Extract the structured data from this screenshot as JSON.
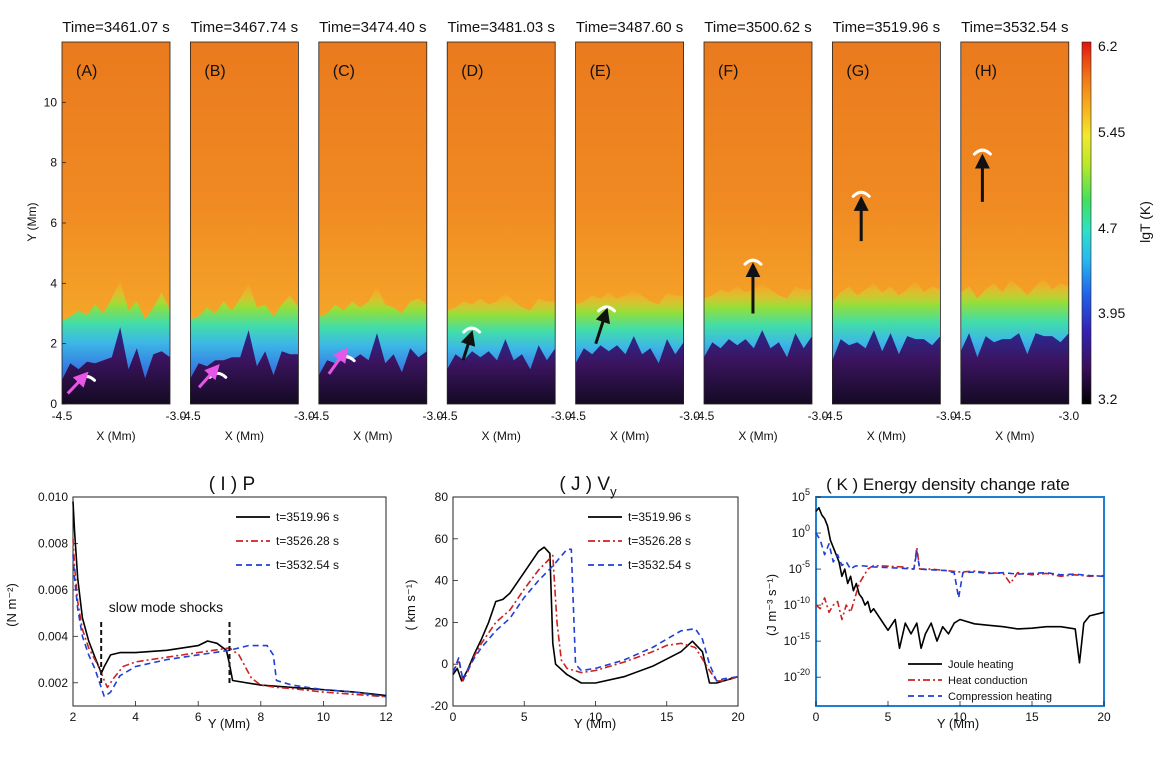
{
  "chart_data": [
    {
      "type": "heatmap",
      "panels": [
        {
          "label": "(A)",
          "title": "Time=3461.07 s",
          "arrow_color": "#e856e8",
          "arrow": {
            "from": [
              -4.42,
              0.35
            ],
            "to": [
              -4.16,
              1.0
            ]
          },
          "front_y": 0.85,
          "tr_base": [
            1.85,
            2.0,
            2.2,
            2.05,
            2.4,
            2.1,
            2.6,
            3.2,
            2.2,
            2.5,
            1.9,
            2.3,
            2.8,
            2.2
          ]
        },
        {
          "label": "(B)",
          "title": "Time=3467.74 s",
          "arrow_color": "#e856e8",
          "arrow": {
            "from": [
              -4.38,
              0.55
            ],
            "to": [
              -4.12,
              1.25
            ]
          },
          "front_y": 0.95,
          "tr_base": [
            1.9,
            2.0,
            2.3,
            2.1,
            2.5,
            2.2,
            2.6,
            3.1,
            2.3,
            2.4,
            2.0,
            2.4,
            2.7,
            2.3
          ]
        },
        {
          "label": "(C)",
          "title": "Time=3474.40 s",
          "arrow_color": "#e856e8",
          "arrow": {
            "from": [
              -4.36,
              1.0
            ],
            "to": [
              -4.12,
              1.8
            ]
          },
          "front_y": 1.5,
          "tr_base": [
            2.0,
            2.1,
            2.4,
            2.2,
            2.5,
            2.3,
            2.5,
            3.0,
            2.4,
            2.3,
            2.1,
            2.5,
            2.6,
            2.4
          ]
        },
        {
          "label": "(D)",
          "title": "Time=3481.03 s",
          "arrow_color": "#111111",
          "arrow": {
            "from": [
              -4.28,
              1.45
            ],
            "to": [
              -4.16,
              2.35
            ]
          },
          "front_y": 2.45,
          "tr_base": [
            2.2,
            2.3,
            2.5,
            2.4,
            2.6,
            2.4,
            2.5,
            2.8,
            2.5,
            2.3,
            2.2,
            2.6,
            2.5,
            2.5
          ]
        },
        {
          "label": "(E)",
          "title": "Time=3487.60 s",
          "arrow_color": "#111111",
          "arrow": {
            "from": [
              -4.22,
              2.0
            ],
            "to": [
              -4.07,
              3.1
            ]
          },
          "front_y": 3.15,
          "tr_base": [
            2.4,
            2.5,
            2.7,
            2.6,
            2.8,
            2.6,
            2.7,
            2.9,
            2.7,
            2.5,
            2.4,
            2.8,
            2.7,
            2.7
          ]
        },
        {
          "label": "(F)",
          "title": "Time=3500.62 s",
          "arrow_color": "#111111",
          "arrow": {
            "from": [
              -3.82,
              3.0
            ],
            "to": [
              -3.82,
              4.6
            ]
          },
          "front_y": 4.7,
          "tr_base": [
            2.6,
            2.7,
            2.9,
            2.8,
            3.0,
            2.8,
            2.9,
            3.1,
            2.9,
            2.7,
            2.6,
            3.0,
            2.9,
            2.9
          ]
        },
        {
          "label": "(G)",
          "title": "Time=3519.96 s",
          "arrow_color": "#111111",
          "arrow": {
            "from": [
              -4.1,
              5.4
            ],
            "to": [
              -4.1,
              6.8
            ]
          },
          "front_y": 6.95,
          "tr_base": [
            2.5,
            2.8,
            3.0,
            2.7,
            2.9,
            3.1,
            2.8,
            3.0,
            2.7,
            2.9,
            3.2,
            2.8,
            3.0,
            2.9
          ]
        },
        {
          "label": "(H)",
          "title": "Time=3532.54 s",
          "arrow_color": "#111111",
          "arrow": {
            "from": [
              -4.2,
              6.7
            ],
            "to": [
              -4.2,
              8.2
            ]
          },
          "front_y": 8.35,
          "tr_base": [
            2.8,
            3.0,
            2.6,
            2.9,
            3.1,
            2.8,
            3.2,
            3.0,
            2.7,
            3.0,
            3.3,
            2.9,
            3.1,
            3.0
          ]
        }
      ],
      "xlabel": "X (Mm)",
      "ylabel": "Y (Mm)",
      "x_range": [
        -4.5,
        -3.0
      ],
      "y_range": [
        0,
        12
      ],
      "x_tick_labels": [
        "-4.5",
        "-3.0"
      ],
      "y_ticks": [
        0,
        2,
        4,
        6,
        8,
        10
      ],
      "colorbar": {
        "label": "lgT (K)",
        "ticks": [
          "6.2",
          "5.45",
          "4.7",
          "3.95",
          "3.2"
        ],
        "range": [
          3.2,
          6.2
        ]
      }
    },
    {
      "type": "line",
      "title": "( I ) P",
      "ylabel": "(N m⁻²)",
      "xlabel": "Y (Mm)",
      "xlim": [
        2,
        12
      ],
      "ylim": [
        0.001,
        0.01
      ],
      "x_ticks": [
        2,
        4,
        6,
        8,
        10,
        12
      ],
      "y_ticks": [
        "0.010",
        "0.008",
        "0.006",
        "0.004",
        "0.002"
      ],
      "y_tick_values": [
        0.01,
        0.008,
        0.006,
        0.004,
        0.002
      ],
      "annotation": "slow mode shocks",
      "shock_x": [
        2.9,
        7.0
      ],
      "series": [
        {
          "name": "t=3519.96 s",
          "color": "#000000",
          "dash": "",
          "x": [
            2.0,
            2.05,
            2.15,
            2.3,
            2.5,
            2.7,
            2.85,
            2.9,
            3.0,
            3.2,
            3.5,
            4,
            5,
            6,
            6.3,
            6.6,
            6.9,
            7.0,
            7.1,
            8,
            9,
            10,
            11,
            12
          ],
          "y": [
            0.0098,
            0.0085,
            0.0065,
            0.0048,
            0.0038,
            0.0031,
            0.0026,
            0.0024,
            0.0027,
            0.0032,
            0.0033,
            0.0033,
            0.0034,
            0.0036,
            0.0038,
            0.0037,
            0.0034,
            0.0028,
            0.0021,
            0.0019,
            0.0018,
            0.0017,
            0.0016,
            0.00145
          ]
        },
        {
          "name": "t=3526.28 s",
          "color": "#cc2222",
          "dash": "7,3,2,3",
          "x": [
            2.0,
            2.05,
            2.15,
            2.3,
            2.5,
            2.7,
            2.85,
            3.0,
            3.1,
            3.3,
            3.6,
            4,
            5,
            6,
            7.0,
            7.3,
            7.7,
            8.0,
            8.5,
            9,
            10,
            11,
            12
          ],
          "y": [
            0.0082,
            0.007,
            0.0055,
            0.0043,
            0.0035,
            0.003,
            0.0026,
            0.0021,
            0.0018,
            0.0022,
            0.0027,
            0.0029,
            0.0031,
            0.0033,
            0.0035,
            0.0032,
            0.0022,
            0.0019,
            0.0018,
            0.00175,
            0.0016,
            0.0015,
            0.0014
          ]
        },
        {
          "name": "t=3532.54 s",
          "color": "#1f3fd6",
          "dash": "6,4",
          "x": [
            2.0,
            2.05,
            2.15,
            2.3,
            2.5,
            2.7,
            2.9,
            3.0,
            3.2,
            3.5,
            4,
            5,
            6,
            7,
            7.6,
            8.2,
            8.4,
            8.5,
            9,
            10,
            11,
            12
          ],
          "y": [
            0.0075,
            0.0065,
            0.0052,
            0.004,
            0.0032,
            0.0026,
            0.0018,
            0.0014,
            0.0016,
            0.0023,
            0.0027,
            0.003,
            0.0032,
            0.0034,
            0.0036,
            0.0036,
            0.0032,
            0.0021,
            0.0019,
            0.0017,
            0.0016,
            0.0014
          ]
        }
      ]
    },
    {
      "type": "line",
      "title": "( J ) V",
      "title_sub": "y",
      "ylabel": "( km s⁻¹)",
      "xlabel": "Y (Mm)",
      "xlim": [
        0,
        20
      ],
      "ylim": [
        -20,
        80
      ],
      "x_ticks": [
        0,
        5,
        10,
        15,
        20
      ],
      "y_ticks": [
        -20,
        0,
        20,
        40,
        60,
        80
      ],
      "series": [
        {
          "name": "t=3519.96 s",
          "color": "#000000",
          "dash": "",
          "x": [
            0,
            0.3,
            0.6,
            1,
            1.5,
            2,
            2.5,
            3,
            3.5,
            4,
            5,
            6,
            6.4,
            6.8,
            7.0,
            7.2,
            8,
            9,
            10,
            12,
            14,
            16,
            16.8,
            17.5,
            18,
            18.5,
            19,
            20
          ],
          "y": [
            -5,
            -2,
            -8,
            -3,
            5,
            12,
            20,
            30,
            31,
            34,
            44,
            54,
            56,
            53,
            10,
            0,
            -5,
            -9,
            -9,
            -6,
            -1,
            6,
            11,
            6,
            -9,
            -9,
            -8,
            -6
          ]
        },
        {
          "name": "t=3526.28 s",
          "color": "#cc2222",
          "dash": "7,3,2,3",
          "x": [
            0,
            0.4,
            0.7,
            1,
            1.5,
            2,
            3,
            4,
            5,
            6,
            7,
            7.3,
            7.6,
            8,
            9,
            10,
            12,
            14,
            15,
            16,
            17,
            18,
            18.5,
            19,
            20
          ],
          "y": [
            -4,
            2,
            -8,
            -4,
            4,
            10,
            20,
            26,
            36,
            45,
            52,
            20,
            2,
            -2,
            -4,
            -3,
            1,
            6,
            9,
            10,
            8,
            -3,
            -8,
            -8,
            -6
          ]
        },
        {
          "name": "t=3532.54 s",
          "color": "#1f3fd6",
          "dash": "6,4",
          "x": [
            0,
            0.4,
            0.7,
            1,
            1.5,
            2,
            3,
            4,
            5,
            6,
            7,
            8,
            8.3,
            8.6,
            9,
            10,
            12,
            14,
            15,
            16,
            17,
            17.5,
            18,
            18.5,
            19,
            20
          ],
          "y": [
            -4,
            3,
            -8,
            -3,
            3,
            8,
            16,
            22,
            32,
            40,
            47,
            55,
            55,
            0,
            -3,
            -2,
            2,
            8,
            12,
            16,
            17,
            12,
            0,
            -8,
            -7,
            -6
          ]
        }
      ]
    },
    {
      "type": "line",
      "title": "( K )  Energy density change rate",
      "ylabel": "(J m⁻³ s⁻¹)",
      "xlabel": "Y (Mm)",
      "xlim": [
        0,
        20
      ],
      "ylim_log10": [
        -24,
        5
      ],
      "x_ticks": [
        0,
        5,
        10,
        15,
        20
      ],
      "y_tick_exponents": [
        5,
        0,
        -5,
        -10,
        -15,
        -20
      ],
      "frame_color": "#1f7fd0",
      "series": [
        {
          "name": "Joule heating",
          "color": "#000000",
          "dash": "",
          "x": [
            0,
            0.2,
            0.4,
            0.6,
            0.8,
            1.0,
            1.2,
            1.4,
            1.6,
            1.8,
            2.0,
            2.2,
            2.4,
            2.6,
            2.8,
            3.0,
            3.2,
            3.4,
            3.6,
            3.8,
            4.0,
            4.5,
            5.0,
            5.5,
            5.8,
            6.2,
            6.6,
            7.0,
            7.3,
            7.6,
            8.0,
            8.4,
            8.8,
            9.2,
            9.6,
            10.0,
            11,
            12,
            13,
            14,
            15,
            16,
            17,
            18,
            18.3,
            18.6,
            19,
            20
          ],
          "y": [
            3,
            3.5,
            2.5,
            2,
            1,
            -1,
            -2,
            -3,
            -4,
            -6,
            -5,
            -7,
            -6,
            -8,
            -7,
            -8.5,
            -9,
            -10,
            -9.5,
            -11,
            -10.5,
            -12,
            -13.5,
            -12,
            -16,
            -12.5,
            -14,
            -12.5,
            -16,
            -14,
            -12.5,
            -15,
            -13,
            -14,
            -12.5,
            -12,
            -12.6,
            -12.8,
            -13,
            -13.3,
            -13.2,
            -13,
            -13,
            -13.3,
            -18,
            -12.5,
            -11.5,
            -11
          ]
        },
        {
          "name": "Heat conduction",
          "color": "#cc2222",
          "dash": "7,3,2,3",
          "x": [
            0,
            0.3,
            0.6,
            0.9,
            1.2,
            1.5,
            1.8,
            2.1,
            2.4,
            2.7,
            3.0,
            3.3,
            3.6,
            4.0,
            5,
            6,
            6.8,
            7.0,
            7.2,
            8,
            9,
            10,
            11,
            12,
            13,
            13.5,
            14,
            15,
            16,
            17,
            18,
            19,
            20
          ],
          "y": [
            -10,
            -10.5,
            -9,
            -11,
            -10,
            -9.5,
            -12,
            -10,
            -11,
            -9,
            -7,
            -6,
            -5,
            -4.5,
            -4.6,
            -4.7,
            -5,
            -2,
            -5,
            -5,
            -5.2,
            -5.4,
            -5.3,
            -5.5,
            -5.6,
            -7,
            -5.5,
            -5.8,
            -5.6,
            -6,
            -5.8,
            -6,
            -5.9
          ]
        },
        {
          "name": "Compression heating",
          "color": "#1f3fd6",
          "dash": "6,4",
          "x": [
            0,
            0.3,
            0.6,
            0.9,
            1.2,
            1.5,
            1.8,
            2.1,
            2.4,
            2.7,
            3.0,
            3.5,
            4.0,
            5,
            6,
            6.8,
            7.0,
            7.2,
            8,
            9,
            9.6,
            9.9,
            10.2,
            11,
            12,
            13,
            14,
            15,
            16,
            17,
            18,
            19,
            20
          ],
          "y": [
            0,
            -1,
            -3,
            -1.5,
            -4,
            -3,
            -4.5,
            -4,
            -5,
            -4.6,
            -4.5,
            -4.6,
            -4.7,
            -4.8,
            -4.9,
            -5,
            -2.5,
            -5,
            -5.1,
            -5.2,
            -5.5,
            -9,
            -5.5,
            -5.4,
            -5.6,
            -5.5,
            -5.7,
            -5.6,
            -5.5,
            -5.8,
            -5.7,
            -5.9,
            -6
          ]
        }
      ]
    }
  ]
}
